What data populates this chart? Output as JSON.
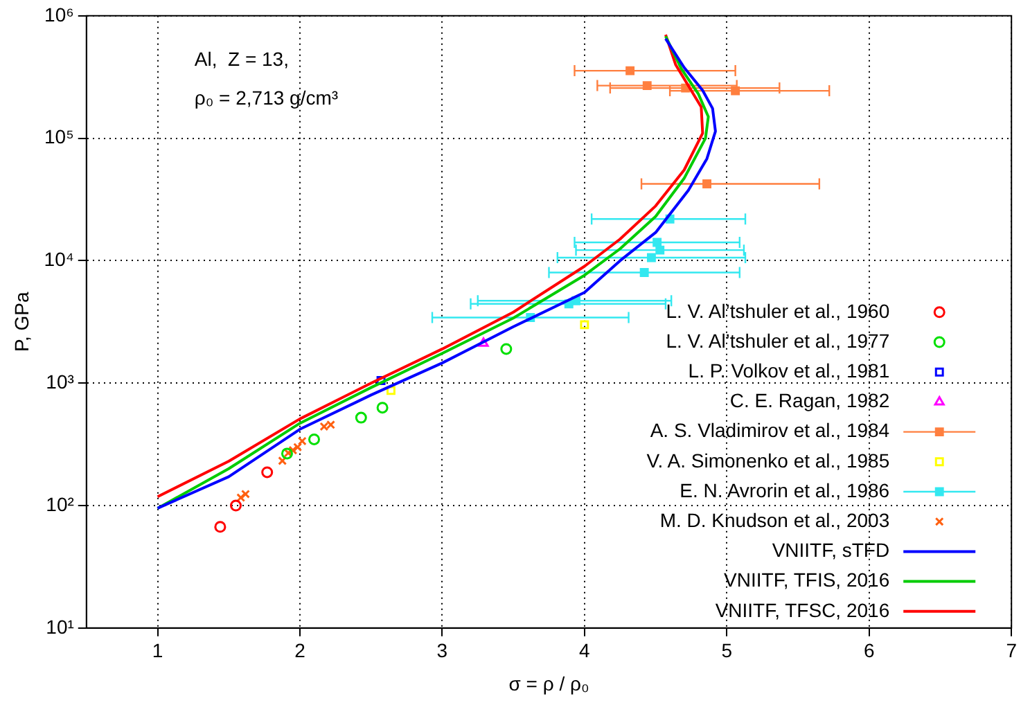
{
  "chart_data": {
    "type": "scatter",
    "xlabel": "σ = ρ / ρ₀",
    "ylabel": "P, GPa",
    "log": "y",
    "grid": true,
    "legend": "bottom right",
    "xlim": [
      0.5,
      7
    ],
    "xticks": [
      1,
      2,
      3,
      4,
      5,
      6,
      7
    ],
    "ylim": [
      10,
      1000000
    ],
    "yticks": [
      {
        "value": 10,
        "label": "10¹"
      },
      {
        "value": 100,
        "label": "10²"
      },
      {
        "value": 1000,
        "label": "10³"
      },
      {
        "value": 10000,
        "label": "10⁴"
      },
      {
        "value": 100000,
        "label": "10⁵"
      },
      {
        "value": 1000000,
        "label": "10⁶"
      }
    ],
    "annotations": [
      "Al,  Z = 13,",
      "ρ₀ = 2,713 g/cm³"
    ],
    "series": [
      {
        "name": "L. V. Al’tshuler et al., 1960",
        "color": "#ff0000",
        "marker": "circle",
        "x": [
          1.44,
          1.55,
          1.77
        ],
        "values": [
          67,
          100,
          187
        ]
      },
      {
        "name": "L. V. Al’tshuler et al., 1977",
        "color": "#00e000",
        "marker": "circle",
        "x": [
          1.91,
          2.1,
          2.43,
          2.58,
          3.45
        ],
        "values": [
          266,
          347,
          522,
          630,
          1900
        ]
      },
      {
        "name": "L. P. Volkov et al., 1981",
        "color": "#0000ff",
        "marker": "square",
        "x": [
          2.57
        ],
        "values": [
          1050
        ]
      },
      {
        "name": "C. E. Ragan, 1982",
        "color": "#ff00ff",
        "marker": "triangle",
        "x": [
          3.29
        ],
        "values": [
          2110
        ]
      },
      {
        "name": "A. S. Vladimirov et al., 1984",
        "color": "#ff7f3f",
        "marker": "square",
        "x": [
          4.32,
          4.44,
          4.71,
          5.06,
          4.86
        ],
        "values": [
          356000,
          269000,
          257000,
          244000,
          42400
        ],
        "xerrors": [
          [
            3.93,
            5.06
          ],
          [
            4.09,
            5.07
          ],
          [
            4.18,
            5.37
          ],
          [
            4.6,
            5.72
          ],
          [
            4.4,
            5.65
          ]
        ]
      },
      {
        "name": "V. A. Simonenko et al., 1985",
        "color": "#ffff00",
        "marker": "square",
        "x": [
          2.64,
          4.0
        ],
        "values": [
          870,
          3000
        ]
      },
      {
        "name": "E. N. Avrorin et al., 1986",
        "color": "#33e8f0",
        "marker": "square",
        "x": [
          4.6,
          4.51,
          4.53,
          4.47,
          4.42,
          3.94,
          3.89,
          3.62
        ],
        "values": [
          21900,
          14100,
          12200,
          10600,
          8000,
          4710,
          4440,
          3430
        ],
        "xerrors": [
          [
            4.05,
            5.13
          ],
          [
            3.93,
            5.09
          ],
          [
            3.94,
            5.12
          ],
          [
            3.81,
            5.13
          ],
          [
            3.75,
            5.09
          ],
          [
            3.25,
            4.61
          ],
          [
            3.2,
            4.57
          ],
          [
            2.93,
            4.31
          ]
        ]
      },
      {
        "name": "M. D. Knudson et al., 2003",
        "color": "#ff6010",
        "marker": "cross",
        "x": [
          1.585,
          1.618,
          1.877,
          1.918,
          1.951,
          1.984,
          2.016,
          2.17,
          2.217
        ],
        "values": [
          116,
          124,
          232,
          269,
          283,
          300,
          336,
          442,
          457
        ]
      },
      {
        "name": "VNIITF, sTFD",
        "type": "line",
        "color": "#0000ff",
        "line_style": "solid",
        "x": [
          1.0,
          1.5,
          2.0,
          2.5,
          3.0,
          3.5,
          4.0,
          4.25,
          4.5,
          4.73,
          4.86,
          4.92,
          4.9,
          4.83,
          4.7,
          4.57
        ],
        "values": [
          95,
          172,
          420,
          800,
          1460,
          2890,
          5500,
          10000,
          17000,
          37600,
          68000,
          114000,
          175000,
          246000,
          378000,
          650000
        ]
      },
      {
        "name": "VNIITF, TFIS, 2016",
        "type": "line",
        "color": "#00cc00",
        "line_style": "solid",
        "x": [
          1.0,
          1.5,
          2.0,
          2.5,
          3.0,
          3.5,
          4.0,
          4.25,
          4.5,
          4.7,
          4.85,
          4.87,
          4.8,
          4.68,
          4.57
        ],
        "values": [
          95,
          200,
          470,
          920,
          1750,
          3400,
          7600,
          12500,
          23000,
          47000,
          100000,
          150000,
          230000,
          370000,
          680000
        ]
      },
      {
        "name": "VNIITF, TFSC, 2016",
        "type": "line",
        "color": "#ff0000",
        "line_style": "solid",
        "x": [
          1.0,
          1.5,
          2.0,
          2.5,
          3.0,
          3.5,
          4.0,
          4.25,
          4.5,
          4.7,
          4.83,
          4.82,
          4.72,
          4.64,
          4.57
        ],
        "values": [
          118,
          230,
          510,
          1000,
          1900,
          3800,
          9000,
          15000,
          28000,
          55000,
          110000,
          180000,
          280000,
          400000,
          700000
        ]
      }
    ]
  }
}
